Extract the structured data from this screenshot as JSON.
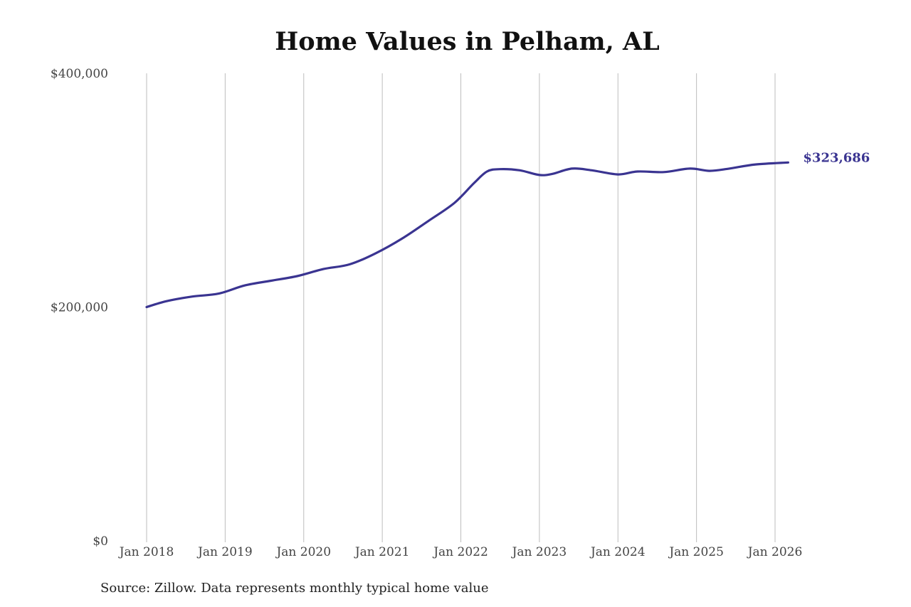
{
  "chart_data": {
    "type": "line",
    "title": "Home Values in Pelham, AL",
    "xlabel": "",
    "ylabel": "",
    "ylim": [
      0,
      400000
    ],
    "y_ticks": [
      0,
      200000,
      400000
    ],
    "y_tick_labels": [
      "$0",
      "$200,000",
      "$400,000"
    ],
    "x_ticks": [
      "2018-01",
      "2019-01",
      "2020-01",
      "2021-01",
      "2022-01",
      "2023-01",
      "2024-01",
      "2025-01",
      "2026-01"
    ],
    "x_tick_labels": [
      "Jan 2018",
      "Jan 2019",
      "Jan 2020",
      "Jan 2021",
      "Jan 2022",
      "Jan 2023",
      "Jan 2024",
      "Jan 2025",
      "Jan 2026"
    ],
    "grid": "vertical",
    "series": [
      {
        "color": "#3a3491",
        "end_label": "$323,686",
        "points": [
          [
            "2018-01",
            200000
          ],
          [
            "2018-04",
            205000
          ],
          [
            "2018-08",
            209000
          ],
          [
            "2018-12",
            211500
          ],
          [
            "2019-04",
            218500
          ],
          [
            "2019-08",
            222500
          ],
          [
            "2019-12",
            226500
          ],
          [
            "2020-04",
            232500
          ],
          [
            "2020-08",
            236500
          ],
          [
            "2020-12",
            246000
          ],
          [
            "2021-04",
            258500
          ],
          [
            "2021-08",
            273500
          ],
          [
            "2021-12",
            289000
          ],
          [
            "2022-03",
            306000
          ],
          [
            "2022-05",
            316000
          ],
          [
            "2022-07",
            318000
          ],
          [
            "2022-10",
            317000
          ],
          [
            "2023-01",
            313000
          ],
          [
            "2023-03",
            314000
          ],
          [
            "2023-06",
            318500
          ],
          [
            "2023-09",
            317000
          ],
          [
            "2024-01",
            313500
          ],
          [
            "2024-04",
            316000
          ],
          [
            "2024-08",
            315500
          ],
          [
            "2024-12",
            318500
          ],
          [
            "2025-03",
            316500
          ],
          [
            "2025-06",
            318500
          ],
          [
            "2025-10",
            322000
          ],
          [
            "2026-03",
            323686
          ]
        ]
      }
    ]
  },
  "source": "Source: Zillow. Data represents monthly typical home value"
}
